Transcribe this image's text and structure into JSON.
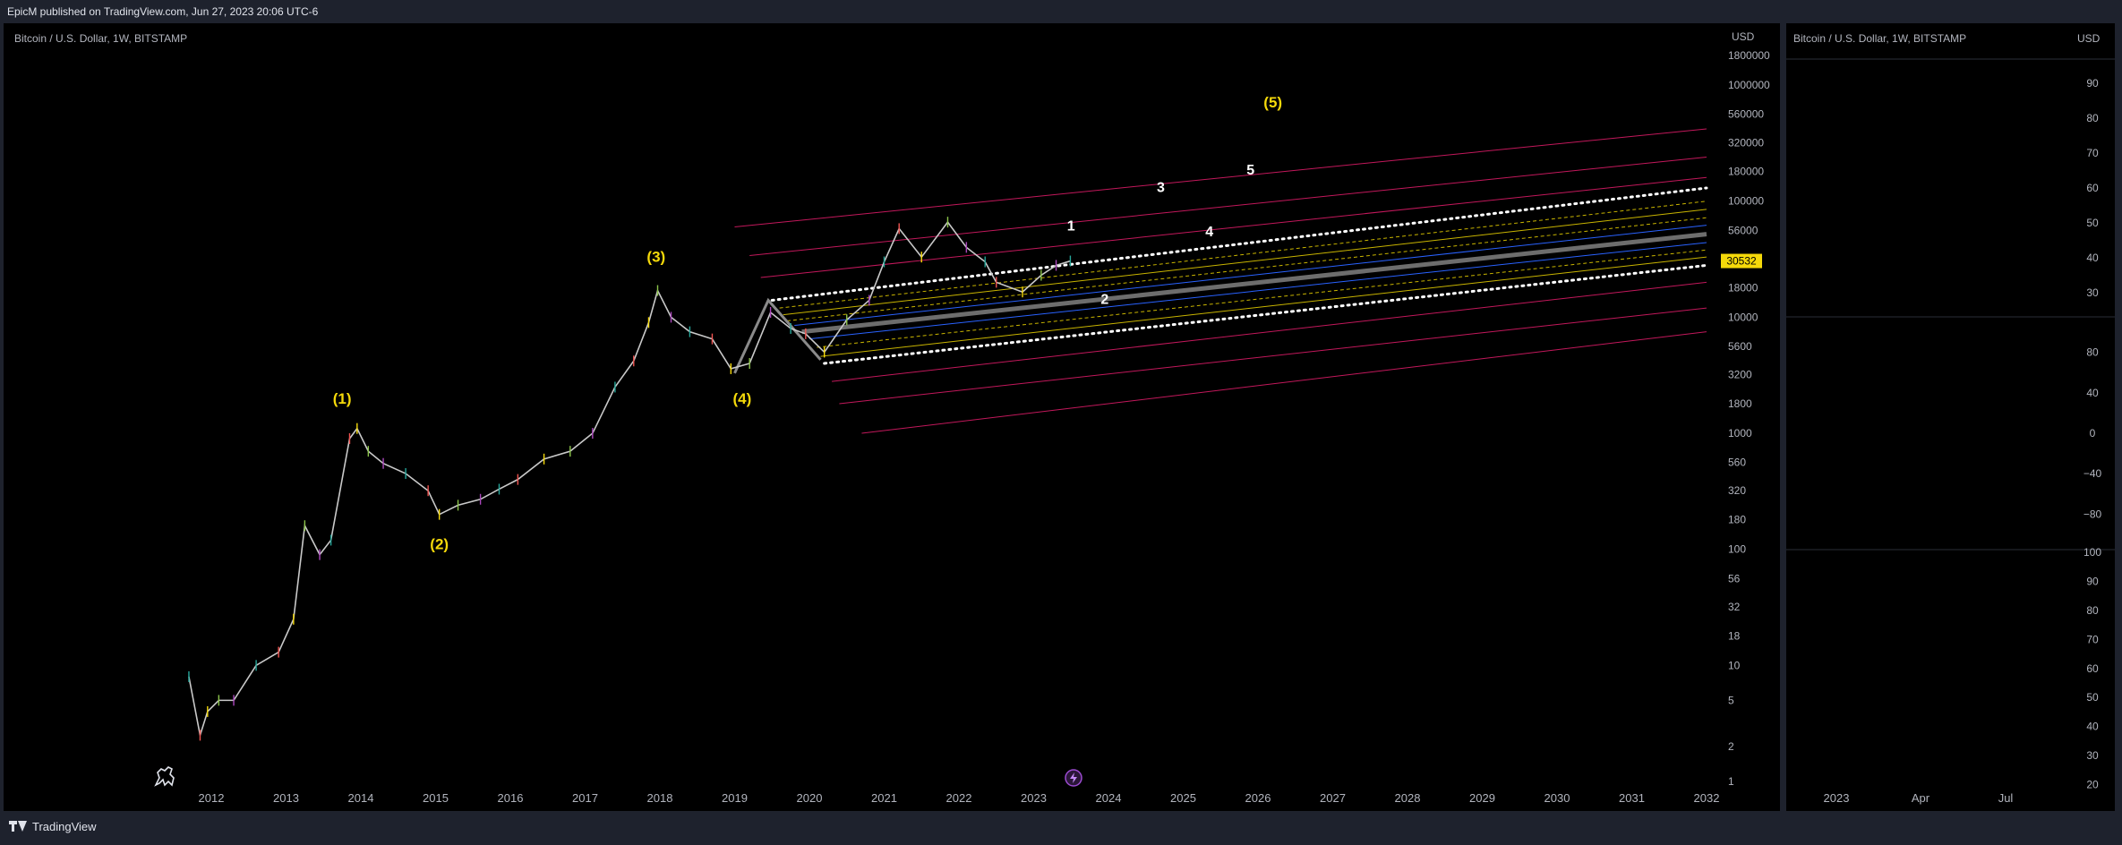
{
  "header": {
    "publish_text": "EpicM published on TradingView.com, Jun 27, 2023 20:06 UTC-6"
  },
  "footer": {
    "brand": "TradingView"
  },
  "main_chart": {
    "symbol_title": "Bitcoin / U.S. Dollar, 1W, BITSTAMP",
    "currency": "USD"
  },
  "side_chart": {
    "symbol_title": "Bitcoin / U.S. Dollar, 1W, BITSTAMP",
    "currency": "USD"
  },
  "colors": {
    "background": "#000000",
    "frame": "#1e222d",
    "wave_label": "#f5d90a",
    "sub_wave_label": "#ffffff",
    "channel_red": "#c2185b",
    "channel_yellow": "#c8b400",
    "channel_blue": "#2962ff",
    "channel_white": "#ffffff",
    "price_badge": "#f5d90a"
  },
  "chart_data": [
    {
      "type": "line",
      "xlabel": "",
      "ylabel": "",
      "x_ticks": [
        "2012",
        "2013",
        "2014",
        "2015",
        "2016",
        "2017",
        "2018",
        "2019",
        "2020",
        "2021",
        "2022",
        "2023",
        "2024",
        "2025",
        "2026",
        "2027",
        "2028",
        "2029",
        "2030",
        "2031",
        "2032"
      ],
      "y_ticks": [
        "1800000",
        "1000000",
        "560000",
        "320000",
        "180000",
        "100000",
        "56000",
        "30532",
        "18000",
        "10000",
        "5600",
        "3200",
        "1800",
        "1000",
        "560",
        "320",
        "180",
        "100",
        "56",
        "32",
        "18",
        "10",
        "5",
        "2",
        "1"
      ],
      "y_scale": "log",
      "ylim": [
        1,
        1800000
      ],
      "xlim": [
        2011.5,
        2032.3
      ],
      "last_price": "30532",
      "series": [
        {
          "points": [
            [
              2011.7,
              8
            ],
            [
              2011.85,
              2.5
            ],
            [
              2011.95,
              4
            ],
            [
              2012.1,
              5
            ],
            [
              2012.3,
              5
            ],
            [
              2012.6,
              10
            ],
            [
              2012.9,
              13
            ],
            [
              2013.1,
              25
            ],
            [
              2013.25,
              160
            ],
            [
              2013.45,
              90
            ],
            [
              2013.6,
              120
            ],
            [
              2013.85,
              900
            ],
            [
              2013.95,
              1100
            ],
            [
              2014.1,
              700
            ],
            [
              2014.3,
              550
            ],
            [
              2014.6,
              450
            ],
            [
              2014.9,
              320
            ],
            [
              2015.05,
              200
            ],
            [
              2015.3,
              240
            ],
            [
              2015.6,
              270
            ],
            [
              2015.85,
              330
            ],
            [
              2016.1,
              400
            ],
            [
              2016.45,
              600
            ],
            [
              2016.8,
              700
            ],
            [
              2017.1,
              1000
            ],
            [
              2017.4,
              2500
            ],
            [
              2017.65,
              4200
            ],
            [
              2017.85,
              9000
            ],
            [
              2017.97,
              17000
            ],
            [
              2018.15,
              10000
            ],
            [
              2018.4,
              7500
            ],
            [
              2018.7,
              6500
            ],
            [
              2018.95,
              3600
            ],
            [
              2019.2,
              4000
            ],
            [
              2019.48,
              11000
            ],
            [
              2019.75,
              8000
            ],
            [
              2019.95,
              7200
            ],
            [
              2020.2,
              5000
            ],
            [
              2020.5,
              9500
            ],
            [
              2020.8,
              14000
            ],
            [
              2021.0,
              30000
            ],
            [
              2021.2,
              58000
            ],
            [
              2021.5,
              33000
            ],
            [
              2021.85,
              66000
            ],
            [
              2022.1,
              40000
            ],
            [
              2022.35,
              30000
            ],
            [
              2022.5,
              20000
            ],
            [
              2022.85,
              16500
            ],
            [
              2023.1,
              23000
            ],
            [
              2023.3,
              28000
            ],
            [
              2023.49,
              30532
            ]
          ]
        }
      ],
      "channel_lines": [
        {
          "color": "red",
          "x": [
            2019.0,
            2032.0
          ],
          "y": [
            60000,
            420000
          ]
        },
        {
          "color": "red",
          "x": [
            2019.2,
            2032.0
          ],
          "y": [
            34000,
            240000
          ]
        },
        {
          "color": "red",
          "x": [
            2019.35,
            2032.0
          ],
          "y": [
            22000,
            160000
          ]
        },
        {
          "color": "white",
          "x": [
            2019.5,
            2032.0
          ],
          "y": [
            14000,
            130000
          ]
        },
        {
          "color": "yellow",
          "x": [
            2019.6,
            2032.0
          ],
          "y": [
            12000,
            100000
          ]
        },
        {
          "color": "yellow",
          "x": [
            2019.65,
            2032.0
          ],
          "y": [
            10500,
            85000
          ]
        },
        {
          "color": "yellow",
          "x": [
            2019.7,
            2032.0
          ],
          "y": [
            9300,
            72000
          ]
        },
        {
          "color": "blue",
          "x": [
            2019.8,
            2032.0
          ],
          "y": [
            8500,
            62000
          ]
        },
        {
          "color": "grey",
          "x": [
            2019.9,
            2032.0
          ],
          "y": [
            7500,
            52000
          ]
        },
        {
          "color": "blue",
          "x": [
            2020.0,
            2032.0
          ],
          "y": [
            6500,
            44000
          ]
        },
        {
          "color": "yellow",
          "x": [
            2020.1,
            2032.0
          ],
          "y": [
            5500,
            38000
          ]
        },
        {
          "color": "yellow",
          "x": [
            2020.15,
            2032.0
          ],
          "y": [
            4600,
            33000
          ]
        },
        {
          "color": "white",
          "x": [
            2020.2,
            2032.0
          ],
          "y": [
            4000,
            28000
          ]
        },
        {
          "color": "red",
          "x": [
            2020.3,
            2032.0
          ],
          "y": [
            2800,
            20000
          ]
        },
        {
          "color": "red",
          "x": [
            2020.4,
            2032.0
          ],
          "y": [
            1800,
            12000
          ]
        },
        {
          "color": "red",
          "x": [
            2020.7,
            2032.0
          ],
          "y": [
            1000,
            7500
          ]
        }
      ],
      "zigzag": [
        [
          2019.0,
          3300
        ],
        [
          2019.45,
          14000
        ],
        [
          2020.15,
          4300
        ]
      ],
      "wave_labels": [
        {
          "text": "(1)",
          "x": 2013.75,
          "y": 1800
        },
        {
          "text": "(2)",
          "x": 2015.05,
          "y": 100
        },
        {
          "text": "(3)",
          "x": 2017.95,
          "y": 30000
        },
        {
          "text": "(4)",
          "x": 2019.1,
          "y": 1800
        },
        {
          "text": "(5)",
          "x": 2026.2,
          "y": 640000
        }
      ],
      "sub_wave_labels": [
        {
          "text": "1",
          "x": 2023.5,
          "y": 56000
        },
        {
          "text": "2",
          "x": 2023.95,
          "y": 13000
        },
        {
          "text": "3",
          "x": 2024.7,
          "y": 120000
        },
        {
          "text": "4",
          "x": 2025.35,
          "y": 50000
        },
        {
          "text": "5",
          "x": 2025.9,
          "y": 170000
        }
      ]
    },
    {
      "type": "line",
      "xlabel": "",
      "ylabel": "",
      "x_ticks": [
        "2023",
        "Apr",
        "Jul"
      ],
      "panels": [
        {
          "y_ticks": [
            "90",
            "80",
            "70",
            "60",
            "50",
            "40",
            "30"
          ],
          "ylim": [
            20,
            100
          ]
        },
        {
          "y_ticks": [
            "80",
            "40",
            "0",
            "−40",
            "−80"
          ],
          "ylim": [
            -120,
            120
          ]
        },
        {
          "y_ticks": [
            "100",
            "90",
            "80",
            "70",
            "60",
            "50",
            "40",
            "30",
            "20"
          ],
          "ylim": [
            15,
            105
          ]
        }
      ]
    }
  ]
}
